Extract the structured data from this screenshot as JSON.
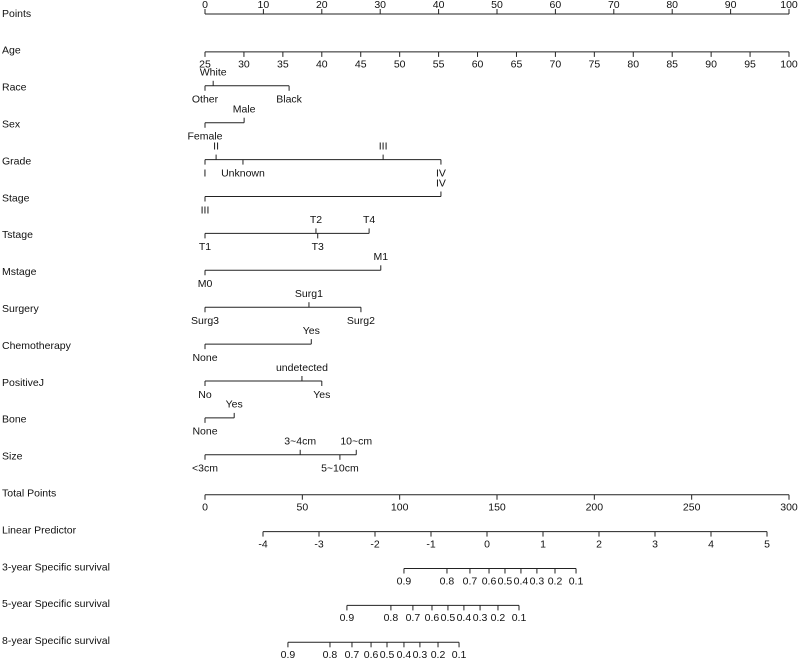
{
  "chart_data": {
    "type": "nomogram",
    "points_lim": [
      0,
      100
    ],
    "total_points_lim": [
      0,
      300
    ],
    "rows": [
      {
        "label": "Points",
        "kind": "points",
        "ticks": [
          0,
          10,
          20,
          30,
          40,
          50,
          60,
          70,
          80,
          90,
          100
        ]
      },
      {
        "label": "Age",
        "kind": "variable",
        "lim": [
          25,
          100
        ],
        "points": [
          0,
          100
        ],
        "ticks": [
          25,
          30,
          35,
          40,
          45,
          50,
          55,
          60,
          65,
          70,
          75,
          80,
          85,
          90,
          95,
          100
        ]
      },
      {
        "label": "Race",
        "kind": "categorical",
        "levels": [
          {
            "name": "White",
            "points": 1.4,
            "position": "above"
          },
          {
            "name": "Other",
            "points": 0,
            "position": "below"
          },
          {
            "name": "Black",
            "points": 14.4,
            "position": "below"
          }
        ]
      },
      {
        "label": "Sex",
        "kind": "categorical",
        "levels": [
          {
            "name": "Male",
            "points": 6.7,
            "position": "above"
          },
          {
            "name": "Female",
            "points": 0,
            "position": "below"
          }
        ]
      },
      {
        "label": "Grade",
        "kind": "categorical",
        "levels": [
          {
            "name": "II",
            "points": 1.9,
            "position": "above"
          },
          {
            "name": "III",
            "points": 30.5,
            "position": "above"
          },
          {
            "name": "I",
            "points": 0,
            "position": "below"
          },
          {
            "name": "Unknown",
            "points": 6.5,
            "position": "below"
          },
          {
            "name": "IV",
            "points": 40.4,
            "position": "below"
          }
        ]
      },
      {
        "label": "Stage",
        "kind": "categorical",
        "levels": [
          {
            "name": "IV",
            "points": 40.4,
            "position": "above"
          },
          {
            "name": "III",
            "points": 0,
            "position": "below"
          }
        ]
      },
      {
        "label": "Tstage",
        "kind": "categorical",
        "levels": [
          {
            "name": "T2",
            "points": 19,
            "position": "above"
          },
          {
            "name": "T4",
            "points": 28.1,
            "position": "above"
          },
          {
            "name": "T1",
            "points": 0,
            "position": "below"
          },
          {
            "name": "T3",
            "points": 19.3,
            "position": "below"
          }
        ]
      },
      {
        "label": "Mstage",
        "kind": "categorical",
        "levels": [
          {
            "name": "M1",
            "points": 30.1,
            "position": "above"
          },
          {
            "name": "M0",
            "points": 0,
            "position": "below"
          }
        ]
      },
      {
        "label": "Surgery",
        "kind": "categorical",
        "levels": [
          {
            "name": "Surg1",
            "points": 17.8,
            "position": "above"
          },
          {
            "name": "Surg3",
            "points": 0,
            "position": "below"
          },
          {
            "name": "Surg2",
            "points": 26.7,
            "position": "below"
          }
        ]
      },
      {
        "label": "Chemotherapy",
        "kind": "categorical",
        "levels": [
          {
            "name": "Yes",
            "points": 18.2,
            "position": "above"
          },
          {
            "name": "None",
            "points": 0,
            "position": "below"
          }
        ]
      },
      {
        "label": "PositiveJ",
        "kind": "categorical",
        "levels": [
          {
            "name": "undetected",
            "points": 16.6,
            "position": "above"
          },
          {
            "name": "No",
            "points": 0,
            "position": "below"
          },
          {
            "name": "Yes",
            "points": 20,
            "position": "below"
          }
        ]
      },
      {
        "label": "Bone",
        "kind": "categorical",
        "levels": [
          {
            "name": "Yes",
            "points": 5,
            "position": "above"
          },
          {
            "name": "None",
            "points": 0,
            "position": "below"
          }
        ]
      },
      {
        "label": "Size",
        "kind": "categorical",
        "levels": [
          {
            "name": "3~4cm",
            "points": 16.3,
            "position": "above"
          },
          {
            "name": "10~cm",
            "points": 25.9,
            "position": "above"
          },
          {
            "name": "<3cm",
            "points": 0,
            "position": "below"
          },
          {
            "name": "5~10cm",
            "points": 23.1,
            "position": "below"
          }
        ]
      },
      {
        "label": "Total Points",
        "kind": "total",
        "ticks": [
          0,
          50,
          100,
          150,
          200,
          250,
          300
        ]
      },
      {
        "label": "Linear Predictor",
        "kind": "predictor",
        "lim": [
          -4,
          5
        ],
        "total_points": [
          29.8,
          288.7
        ],
        "ticks": [
          -4,
          -3,
          -2,
          -1,
          0,
          1,
          2,
          3,
          4,
          5
        ]
      },
      {
        "label": "3-year Specific survival",
        "kind": "survival",
        "ticks": [
          {
            "survival": 0.9,
            "total_points": 102.2
          },
          {
            "survival": 0.8,
            "total_points": 124.3
          },
          {
            "survival": 0.7,
            "total_points": 136.1
          },
          {
            "survival": 0.6,
            "total_points": 145.9
          },
          {
            "survival": 0.5,
            "total_points": 154.1
          },
          {
            "survival": 0.4,
            "total_points": 162.3
          },
          {
            "survival": 0.3,
            "total_points": 170.5
          },
          {
            "survival": 0.2,
            "total_points": 179.8
          },
          {
            "survival": 0.1,
            "total_points": 190.6
          }
        ]
      },
      {
        "label": "5-year Specific survival",
        "kind": "survival",
        "ticks": [
          {
            "survival": 0.9,
            "total_points": 72.9
          },
          {
            "survival": 0.8,
            "total_points": 95.5
          },
          {
            "survival": 0.7,
            "total_points": 106.8
          },
          {
            "survival": 0.6,
            "total_points": 116.6
          },
          {
            "survival": 0.5,
            "total_points": 124.8
          },
          {
            "survival": 0.4,
            "total_points": 133.0
          },
          {
            "survival": 0.3,
            "total_points": 141.3
          },
          {
            "survival": 0.2,
            "total_points": 150.5
          },
          {
            "survival": 0.1,
            "total_points": 161.3
          }
        ]
      },
      {
        "label": "8-year Specific survival",
        "kind": "survival",
        "ticks": [
          {
            "survival": 0.9,
            "total_points": 42.6
          },
          {
            "survival": 0.8,
            "total_points": 64.2
          },
          {
            "survival": 0.7,
            "total_points": 75.5
          },
          {
            "survival": 0.6,
            "total_points": 85.3
          },
          {
            "survival": 0.5,
            "total_points": 93.5
          },
          {
            "survival": 0.4,
            "total_points": 102.2
          },
          {
            "survival": 0.3,
            "total_points": 110.4
          },
          {
            "survival": 0.2,
            "total_points": 119.7
          },
          {
            "survival": 0.1,
            "total_points": 130.5
          }
        ]
      }
    ]
  }
}
